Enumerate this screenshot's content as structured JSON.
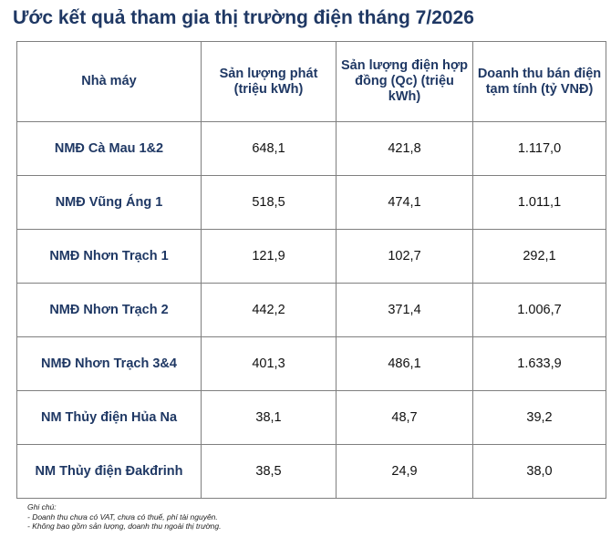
{
  "title": "Ước kết quả tham gia thị trường điện tháng 7/2026",
  "table": {
    "headers": [
      "Nhà máy",
      "Sản lượng phát (triệu kWh)",
      "Sản lượng điện hợp đồng (Qc) (triệu kWh)",
      "Doanh thu bán điện tạm tính (tỷ VNĐ)"
    ],
    "rows": [
      [
        "NMĐ Cà Mau 1&2",
        "648,1",
        "421,8",
        "1.117,0"
      ],
      [
        "NMĐ Vũng Áng 1",
        "518,5",
        "474,1",
        "1.011,1"
      ],
      [
        "NMĐ Nhơn Trạch 1",
        "121,9",
        "102,7",
        "292,1"
      ],
      [
        "NMĐ Nhơn Trạch 2",
        "442,2",
        "371,4",
        "1.006,7"
      ],
      [
        "NMĐ Nhơn Trạch 3&4",
        "401,3",
        "486,1",
        "1.633,9"
      ],
      [
        "NM Thủy điện Hủa Na",
        "38,1",
        "48,7",
        "39,2"
      ],
      [
        "NM Thủy điện Đakđrinh",
        "38,5",
        "24,9",
        "38,0"
      ]
    ]
  },
  "notes": {
    "heading": "Ghi chú:",
    "lines": [
      "- Doanh thu chưa có VAT, chưa có thuế, phí tài nguyên.",
      "- Không bao gồm sản lượng, doanh thu ngoài thị trường."
    ]
  }
}
